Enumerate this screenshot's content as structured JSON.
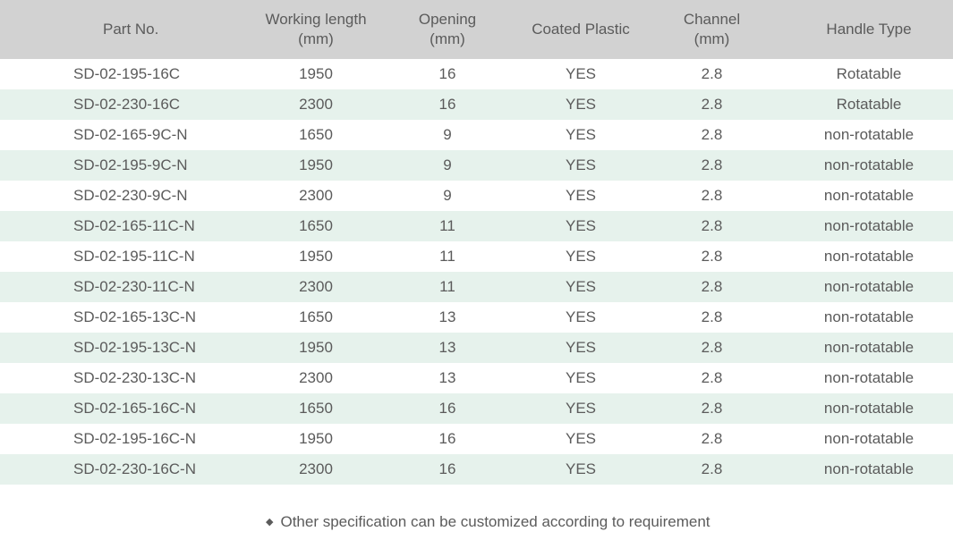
{
  "table": {
    "headers": [
      {
        "line1": "Part No.",
        "line2": ""
      },
      {
        "line1": "Working length",
        "line2": "(mm)"
      },
      {
        "line1": "Opening",
        "line2": "(mm)"
      },
      {
        "line1": "Coated Plastic",
        "line2": ""
      },
      {
        "line1": "Channel",
        "line2": "(mm)"
      },
      {
        "line1": "Handle Type",
        "line2": ""
      }
    ],
    "rows": [
      {
        "part": "SD-02-195-16C",
        "length": "1950",
        "opening": "16",
        "coated": "YES",
        "channel": "2.8",
        "handle": "Rotatable"
      },
      {
        "part": "SD-02-230-16C",
        "length": "2300",
        "opening": "16",
        "coated": "YES",
        "channel": "2.8",
        "handle": "Rotatable"
      },
      {
        "part": "SD-02-165-9C-N",
        "length": "1650",
        "opening": "9",
        "coated": "YES",
        "channel": "2.8",
        "handle": "non-rotatable"
      },
      {
        "part": "SD-02-195-9C-N",
        "length": "1950",
        "opening": "9",
        "coated": "YES",
        "channel": "2.8",
        "handle": "non-rotatable"
      },
      {
        "part": "SD-02-230-9C-N",
        "length": "2300",
        "opening": "9",
        "coated": "YES",
        "channel": "2.8",
        "handle": "non-rotatable"
      },
      {
        "part": "SD-02-165-11C-N",
        "length": "1650",
        "opening": "11",
        "coated": "YES",
        "channel": "2.8",
        "handle": "non-rotatable"
      },
      {
        "part": "SD-02-195-11C-N",
        "length": "1950",
        "opening": "11",
        "coated": "YES",
        "channel": "2.8",
        "handle": "non-rotatable"
      },
      {
        "part": "SD-02-230-11C-N",
        "length": "2300",
        "opening": "11",
        "coated": "YES",
        "channel": "2.8",
        "handle": "non-rotatable"
      },
      {
        "part": "SD-02-165-13C-N",
        "length": "1650",
        "opening": "13",
        "coated": "YES",
        "channel": "2.8",
        "handle": "non-rotatable"
      },
      {
        "part": "SD-02-195-13C-N",
        "length": "1950",
        "opening": "13",
        "coated": "YES",
        "channel": "2.8",
        "handle": "non-rotatable"
      },
      {
        "part": "SD-02-230-13C-N",
        "length": "2300",
        "opening": "13",
        "coated": "YES",
        "channel": "2.8",
        "handle": "non-rotatable"
      },
      {
        "part": "SD-02-165-16C-N",
        "length": "1650",
        "opening": "16",
        "coated": "YES",
        "channel": "2.8",
        "handle": "non-rotatable"
      },
      {
        "part": "SD-02-195-16C-N",
        "length": "1950",
        "opening": "16",
        "coated": "YES",
        "channel": "2.8",
        "handle": "non-rotatable"
      },
      {
        "part": "SD-02-230-16C-N",
        "length": "2300",
        "opening": "16",
        "coated": "YES",
        "channel": "2.8",
        "handle": "non-rotatable"
      }
    ]
  },
  "note": {
    "bullet_icon": "diamond-bullet",
    "text": "Other specification can be customized according to requirement"
  },
  "colors": {
    "header_bg": "#d2d2d2",
    "shaded_row_bg": "#e6f2ec",
    "text": "#5b5b5b"
  }
}
